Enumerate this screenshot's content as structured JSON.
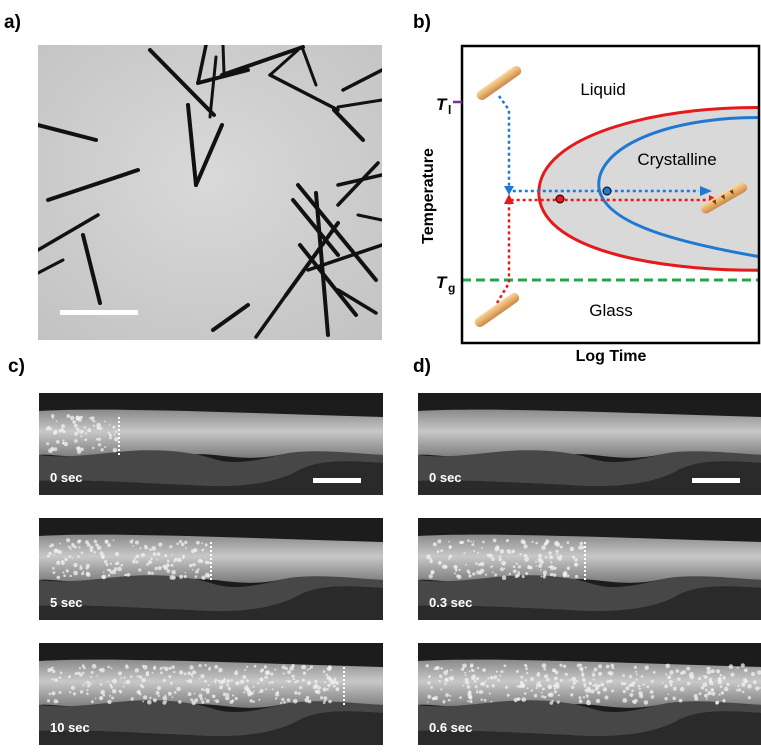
{
  "panels": {
    "a": {
      "label": "a)"
    },
    "b": {
      "label": "b)",
      "xlabel": "Log Time",
      "ylabel": "Temperature",
      "region_liquid": "Liquid",
      "region_crystalline": "Crystalline",
      "region_glass": "Glass",
      "tl_symbol": "T",
      "tl_sub": "l",
      "tg_symbol": "T",
      "tg_sub": "g",
      "colors": {
        "outer_boundary": "#e41a1c",
        "inner_boundary": "#1f78d1",
        "tg_line": "#22a84a",
        "crystal_fill": "#d9d9d9",
        "tl_tick": "#7b2f9e"
      }
    },
    "c": {
      "label": "c)",
      "frames": [
        {
          "time": "0 sec"
        },
        {
          "time": "5 sec"
        },
        {
          "time": "10 sec"
        }
      ]
    },
    "d": {
      "label": "d)",
      "frames": [
        {
          "time": "0 sec"
        },
        {
          "time": "0.3 sec"
        },
        {
          "time": "0.6 sec"
        }
      ]
    }
  }
}
